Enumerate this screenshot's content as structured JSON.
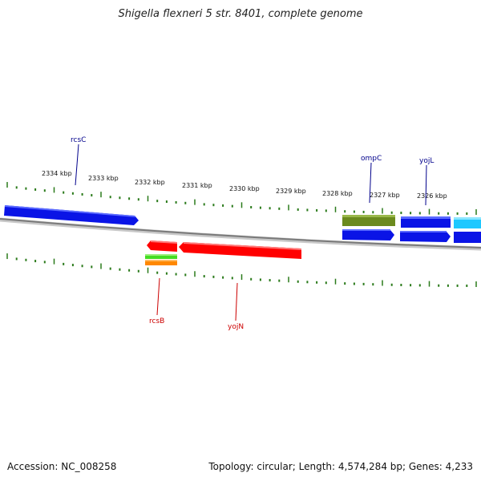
{
  "title": "Shigella flexneri 5 str. 8401, complete genome",
  "footer": {
    "accession": "Accession: NC_008258",
    "summary": "Topology: circular; Length: 4,574,284 bp; Genes: 4,233"
  },
  "scale_labels": [
    "2334 kbp",
    "2333 kbp",
    "2332 kbp",
    "2331 kbp",
    "2330 kbp",
    "2329 kbp",
    "2328 kbp",
    "2327 kbp",
    "2326 kbp"
  ],
  "gene_labels": {
    "top": [
      "rcsC",
      "ompC",
      "yojL"
    ],
    "bottom": [
      "rcsB",
      "yojN"
    ]
  },
  "colors": {
    "forward": "#0a14e6",
    "forward_light": "#1ec8ff",
    "reverse": "#ff0000",
    "olive": "#6b8a1e",
    "green": "#44dd22",
    "orange": "#ff8800",
    "tick": "#2a7a1a",
    "label_top": "#00008b",
    "label_bottom": "#cc0000",
    "backbone": "#808080"
  }
}
